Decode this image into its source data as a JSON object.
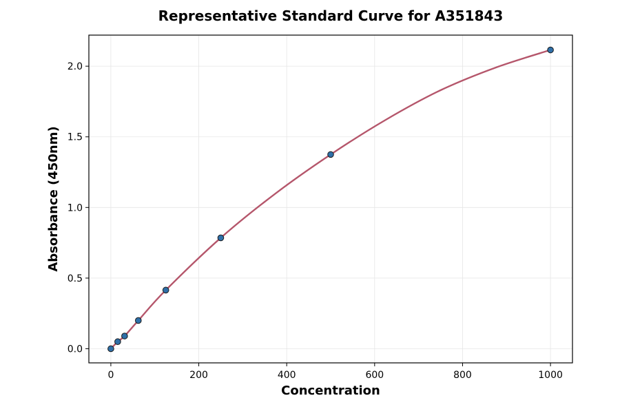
{
  "chart_data": {
    "type": "scatter",
    "title": "Representative Standard Curve for A351843",
    "xlabel": "Concentration",
    "ylabel": "Absorbance (450nm)",
    "xlim": [
      -50,
      1050
    ],
    "ylim": [
      -0.1,
      2.22
    ],
    "xticks": [
      0,
      200,
      400,
      600,
      800,
      1000
    ],
    "yticks": [
      0.0,
      0.5,
      1.0,
      1.5,
      2.0
    ],
    "xtick_labels": [
      "0",
      "200",
      "400",
      "600",
      "800",
      "1000"
    ],
    "ytick_labels": [
      "0.0",
      "0.5",
      "1.0",
      "1.5",
      "2.0"
    ],
    "grid": true,
    "series": [
      {
        "kind": "points",
        "x": [
          0,
          15.6,
          31.25,
          62.5,
          125,
          250,
          500,
          1000
        ],
        "y": [
          0.0,
          0.05,
          0.09,
          0.2,
          0.415,
          0.785,
          1.375,
          2.115
        ],
        "color": "#2f6fa8"
      },
      {
        "kind": "fit-line",
        "x": [
          0,
          15.6,
          31.25,
          62.5,
          125,
          250,
          375,
          500,
          625,
          750,
          875,
          1000
        ],
        "y": [
          0.0,
          0.05,
          0.09,
          0.2,
          0.415,
          0.785,
          1.1,
          1.375,
          1.62,
          1.83,
          1.99,
          2.115
        ],
        "color": "#b5566b"
      }
    ]
  }
}
